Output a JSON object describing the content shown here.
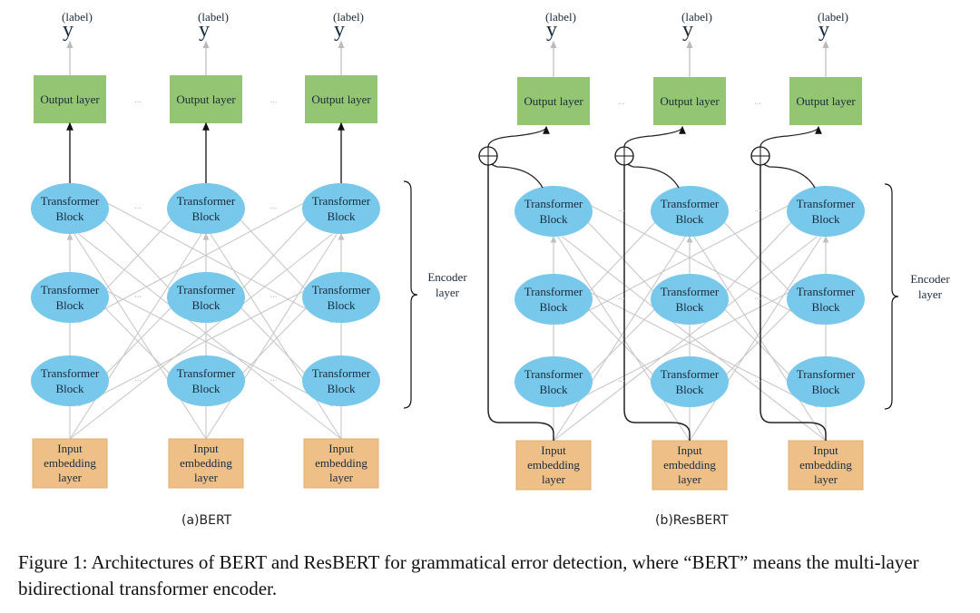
{
  "labels": {
    "y_base": "y",
    "y_sup": "(label)",
    "output": "Output layer",
    "transformer": [
      "Transformer",
      "Block"
    ],
    "input": [
      "Input",
      "embedding",
      "layer"
    ],
    "ellipsis": "...",
    "encoder": [
      "Encoder",
      "layer"
    ]
  },
  "colors": {
    "output_fill": "#93c572",
    "block_fill": "#78c8ec",
    "input_fill": "#eec088",
    "connector": "#c8c8c8",
    "residual": "#222222"
  },
  "diagrams": [
    {
      "id": "bert",
      "subtitle": "(a)BERT",
      "residual": false,
      "columns": 3,
      "encoder_blocks": 3
    },
    {
      "id": "resbert",
      "subtitle": "(b)ResBERT",
      "residual": true,
      "columns": 3,
      "encoder_blocks": 3
    }
  ],
  "caption": "Figure 1: Architectures of BERT and ResBERT for grammatical error detection, where “BERT” means the multi-layer bidirectional transformer encoder."
}
